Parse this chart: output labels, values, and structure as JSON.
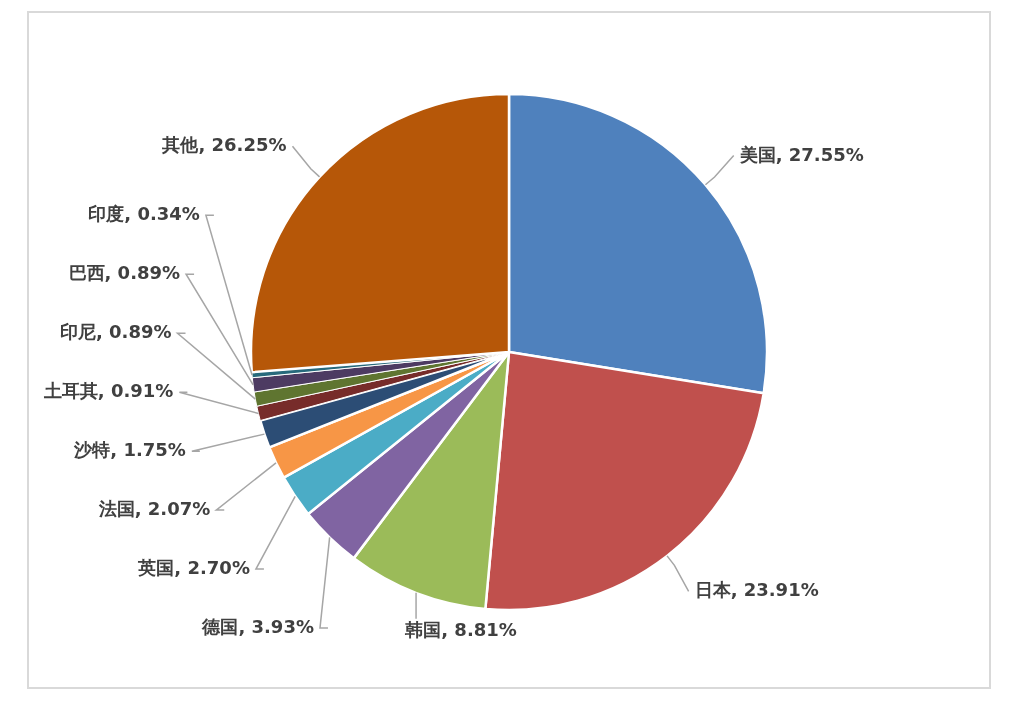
{
  "chart_data": {
    "type": "pie",
    "categories": [
      "美国",
      "日本",
      "韩国",
      "德国",
      "英国",
      "法国",
      "沙特",
      "土耳其",
      "印尼",
      "巴西",
      "印度",
      "其他"
    ],
    "values": [
      27.55,
      23.91,
      8.81,
      3.93,
      2.7,
      2.07,
      1.75,
      0.91,
      0.89,
      0.89,
      0.34,
      26.25
    ],
    "value_labels": [
      "27.55%",
      "23.91%",
      "8.81%",
      "3.93%",
      "2.70%",
      "2.07%",
      "1.75%",
      "0.91%",
      "0.89%",
      "0.89%",
      "0.34%",
      "26.25%"
    ],
    "colors": [
      "#4f81bd",
      "#c0504d",
      "#9bbb59",
      "#8064a2",
      "#4bacc6",
      "#f79646",
      "#2c4d75",
      "#772c2a",
      "#5f7530",
      "#4d3b62",
      "#276a7c",
      "#b65708"
    ]
  }
}
